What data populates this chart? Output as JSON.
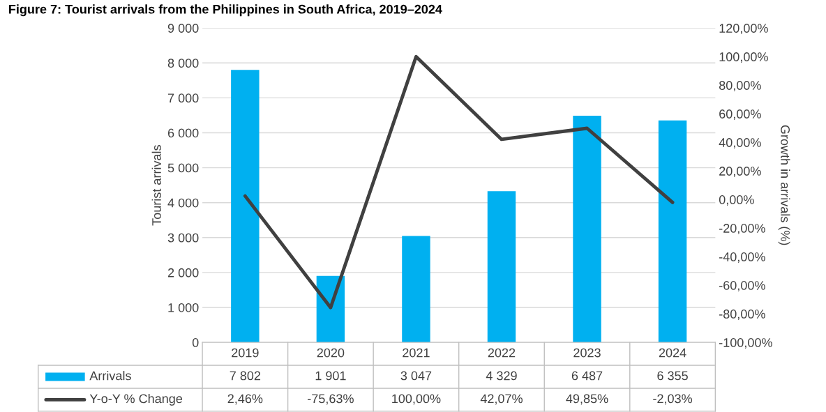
{
  "chart_data": {
    "type": "bar",
    "title": "Figure 7: Tourist arrivals from the Philippines in South Africa, 2019–2024",
    "ylabel": "Tourist arrivals",
    "y2label": "Growth in arrivals (%)",
    "categories": [
      "2019",
      "2020",
      "2021",
      "2022",
      "2023",
      "2024"
    ],
    "series": [
      {
        "name": "Arrivals",
        "color": "#00b0f0",
        "values": [
          7802,
          1901,
          3047,
          4329,
          6487,
          6355
        ],
        "value_labels": [
          "7 802",
          "1 901",
          "3 047",
          "4 329",
          "6 487",
          "6 355"
        ]
      },
      {
        "name": "Y-o-Y % Change",
        "type": "line",
        "axis": "y2",
        "color": "#404040",
        "values": [
          2.46,
          -75.63,
          100.0,
          42.07,
          49.85,
          -2.03
        ],
        "value_labels": [
          "2,46%",
          "-75,63%",
          "100,00%",
          "42,07%",
          "49,85%",
          "-2,03%"
        ]
      }
    ],
    "ylim": [
      0,
      9000
    ],
    "yticks": [
      {
        "value": 0,
        "label": "0"
      },
      {
        "value": 1000,
        "label": "1 000"
      },
      {
        "value": 2000,
        "label": "2 000"
      },
      {
        "value": 3000,
        "label": "3 000"
      },
      {
        "value": 4000,
        "label": "4 000"
      },
      {
        "value": 5000,
        "label": "5 000"
      },
      {
        "value": 6000,
        "label": "6 000"
      },
      {
        "value": 7000,
        "label": "7 000"
      },
      {
        "value": 8000,
        "label": "8 000"
      },
      {
        "value": 9000,
        "label": "9 000"
      }
    ],
    "y2lim": [
      -100,
      120
    ],
    "y2ticks": [
      {
        "value": -100,
        "label": "-100,00%"
      },
      {
        "value": -80,
        "label": "-80,00%"
      },
      {
        "value": -60,
        "label": "-60,00%"
      },
      {
        "value": -40,
        "label": "-40,00%"
      },
      {
        "value": -20,
        "label": "-20,00%"
      },
      {
        "value": 0,
        "label": "0,00%"
      },
      {
        "value": 20,
        "label": "20,00%"
      },
      {
        "value": 40,
        "label": "40,00%"
      },
      {
        "value": 60,
        "label": "60,00%"
      },
      {
        "value": 80,
        "label": "80,00%"
      },
      {
        "value": 100,
        "label": "100,00%"
      },
      {
        "value": 120,
        "label": "120,00%"
      }
    ],
    "grid": "y",
    "legend": "bottom left",
    "marker": "none",
    "line_style": "solid"
  }
}
